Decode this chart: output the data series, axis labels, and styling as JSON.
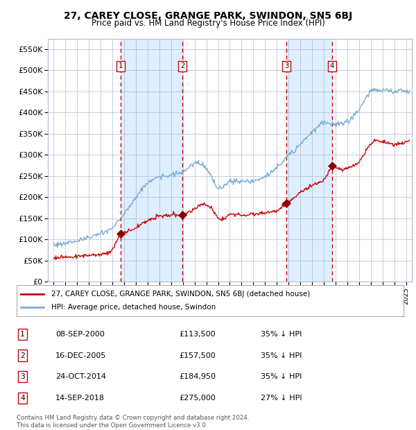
{
  "title": "27, CAREY CLOSE, GRANGE PARK, SWINDON, SN5 6BJ",
  "subtitle": "Price paid vs. HM Land Registry's House Price Index (HPI)",
  "legend_line1": "27, CAREY CLOSE, GRANGE PARK, SWINDON, SN5 6BJ (detached house)",
  "legend_line2": "HPI: Average price, detached house, Swindon",
  "footnote": "Contains HM Land Registry data © Crown copyright and database right 2024.\nThis data is licensed under the Open Government Licence v3.0.",
  "transactions": [
    {
      "num": 1,
      "date": "08-SEP-2000",
      "price": 113500,
      "pct": "35%",
      "year_x": 2000.69
    },
    {
      "num": 2,
      "date": "16-DEC-2005",
      "price": 157500,
      "pct": "35%",
      "year_x": 2005.96
    },
    {
      "num": 3,
      "date": "24-OCT-2014",
      "price": 184950,
      "pct": "35%",
      "year_x": 2014.81
    },
    {
      "num": 4,
      "date": "14-SEP-2018",
      "price": 275000,
      "pct": "27%",
      "year_x": 2018.71
    }
  ],
  "red_color": "#cc0000",
  "blue_color": "#7aadd4",
  "bg_shade_color": "#ddeeff",
  "grid_color": "#b0b8cc",
  "ylim": [
    0,
    575000
  ],
  "yticks": [
    0,
    50000,
    100000,
    150000,
    200000,
    250000,
    300000,
    350000,
    400000,
    450000,
    500000,
    550000
  ],
  "xlim_start": 1994.5,
  "xlim_end": 2025.5,
  "hpi_knots": [
    [
      1995.0,
      87000
    ],
    [
      1996.0,
      91000
    ],
    [
      1997.0,
      97000
    ],
    [
      1998.0,
      104000
    ],
    [
      1999.0,
      113000
    ],
    [
      2000.0,
      126000
    ],
    [
      2001.0,
      160000
    ],
    [
      2002.0,
      200000
    ],
    [
      2003.0,
      235000
    ],
    [
      2004.0,
      248000
    ],
    [
      2005.0,
      252000
    ],
    [
      2006.0,
      258000
    ],
    [
      2007.0,
      280000
    ],
    [
      2007.5,
      282000
    ],
    [
      2008.0,
      268000
    ],
    [
      2009.0,
      218000
    ],
    [
      2010.0,
      238000
    ],
    [
      2011.0,
      237000
    ],
    [
      2012.0,
      237000
    ],
    [
      2013.0,
      248000
    ],
    [
      2014.0,
      268000
    ],
    [
      2015.0,
      300000
    ],
    [
      2016.0,
      325000
    ],
    [
      2017.0,
      355000
    ],
    [
      2018.0,
      378000
    ],
    [
      2019.0,
      372000
    ],
    [
      2020.0,
      378000
    ],
    [
      2021.0,
      405000
    ],
    [
      2022.0,
      453000
    ],
    [
      2023.0,
      453000
    ],
    [
      2024.0,
      450000
    ],
    [
      2025.3,
      452000
    ]
  ],
  "prop_knots": [
    [
      1995.0,
      57000
    ],
    [
      1996.5,
      59000
    ],
    [
      1998.0,
      62000
    ],
    [
      1999.5,
      67000
    ],
    [
      2000.0,
      75000
    ],
    [
      2000.69,
      113500
    ],
    [
      2001.3,
      118000
    ],
    [
      2002.0,
      128000
    ],
    [
      2003.0,
      145000
    ],
    [
      2004.0,
      155000
    ],
    [
      2005.0,
      157000
    ],
    [
      2005.96,
      157500
    ],
    [
      2006.3,
      162000
    ],
    [
      2006.8,
      168000
    ],
    [
      2007.3,
      178000
    ],
    [
      2007.8,
      186000
    ],
    [
      2008.5,
      172000
    ],
    [
      2009.0,
      148000
    ],
    [
      2009.5,
      150000
    ],
    [
      2010.0,
      160000
    ],
    [
      2011.0,
      158000
    ],
    [
      2012.0,
      160000
    ],
    [
      2013.0,
      163000
    ],
    [
      2014.0,
      168000
    ],
    [
      2014.81,
      184950
    ],
    [
      2015.3,
      194000
    ],
    [
      2016.0,
      210000
    ],
    [
      2017.0,
      228000
    ],
    [
      2018.0,
      238000
    ],
    [
      2018.71,
      275000
    ],
    [
      2019.0,
      270000
    ],
    [
      2019.5,
      265000
    ],
    [
      2020.0,
      268000
    ],
    [
      2021.0,
      282000
    ],
    [
      2022.0,
      328000
    ],
    [
      2022.5,
      335000
    ],
    [
      2023.0,
      332000
    ],
    [
      2023.5,
      328000
    ],
    [
      2024.0,
      325000
    ],
    [
      2025.3,
      332000
    ]
  ],
  "hpi_noise_scale": 3000,
  "prop_noise_scale": 2200
}
